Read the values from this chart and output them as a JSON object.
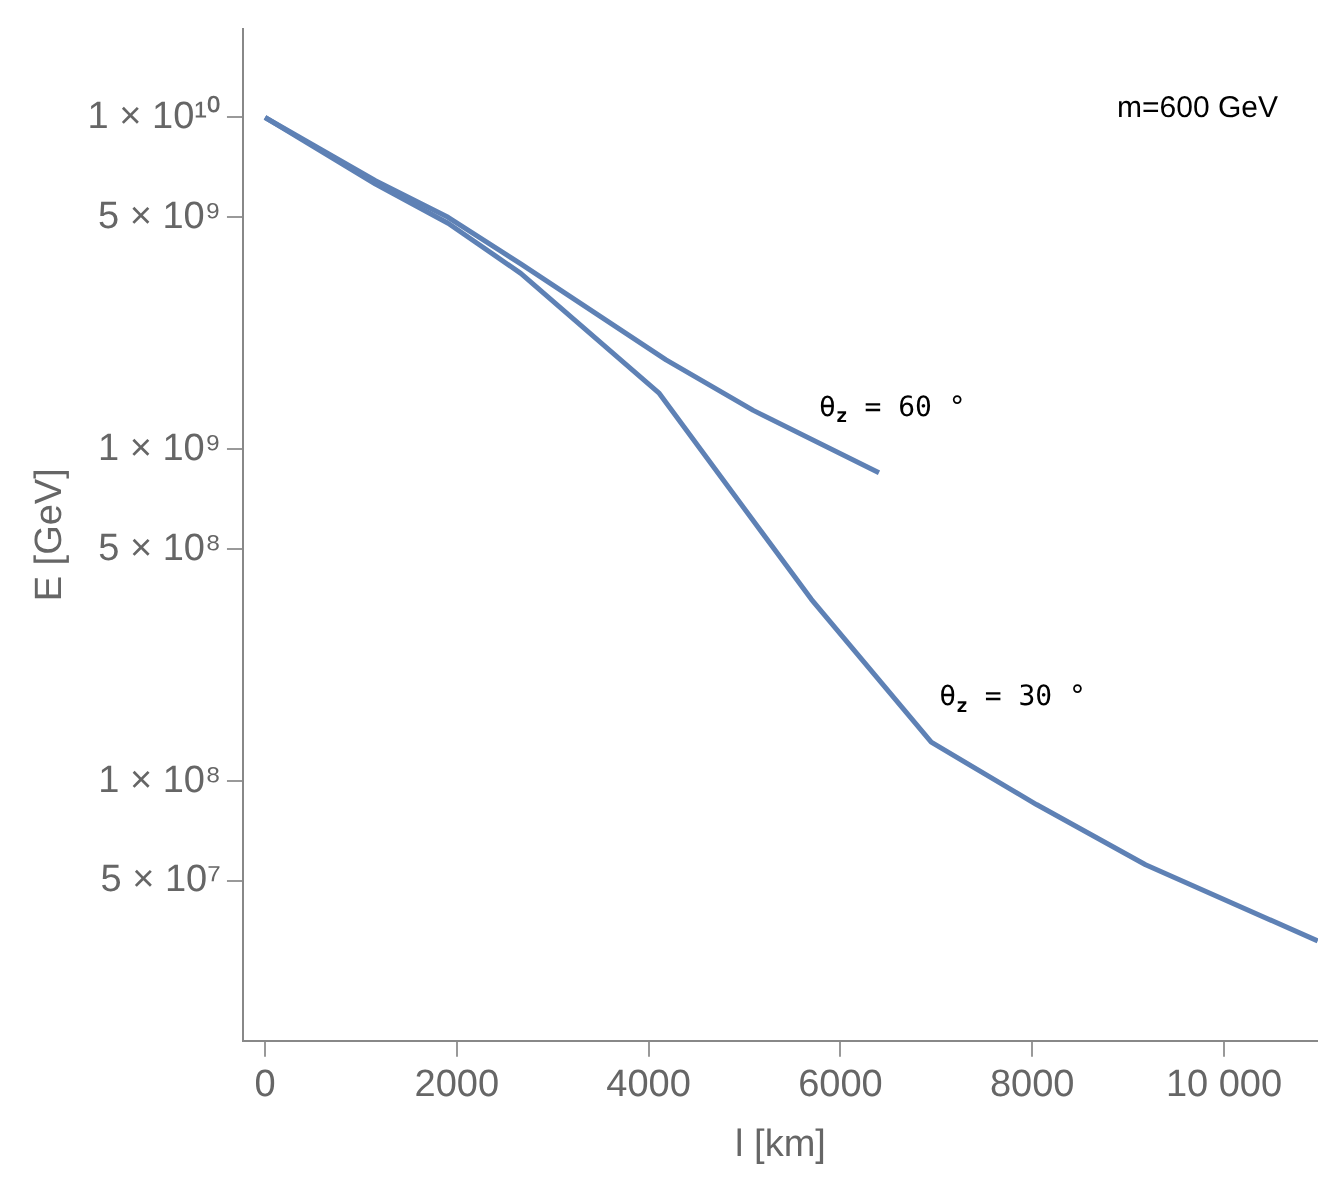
{
  "chart_data": {
    "type": "line",
    "xlabel": "l [km]",
    "ylabel": "E [GeV]",
    "log": "y",
    "grid": false,
    "legend": false,
    "marker": "none",
    "line_style": "solid",
    "xlim": [
      -230,
      10980
    ],
    "xticks": [
      0,
      2000,
      4000,
      6000,
      8000,
      {
        "value": 10000,
        "label": "10 000"
      }
    ],
    "ylim": [
      16500000,
      18500000000
    ],
    "yticks": [
      {
        "value": 10000000000,
        "label": "1 × 10¹⁰"
      },
      {
        "value": 5000000000,
        "label": "5 × 10⁹"
      },
      {
        "value": 1000000000,
        "label": "1 × 10⁹"
      },
      {
        "value": 500000000,
        "label": "5 × 10⁸"
      },
      {
        "value": 100000000,
        "label": "1 × 10⁸"
      },
      {
        "value": 50000000,
        "label": "5 × 10⁷"
      }
    ],
    "series": [
      {
        "name": "θ$_{z}$ = 60 °",
        "color": "#5e81b5",
        "x": [
          0,
          1152,
          1909,
          2667,
          4182,
          5091,
          6402
        ],
        "values": [
          10000000000,
          6450000000,
          5000000000,
          3620000000,
          1860000000,
          1310000000,
          850000000
        ]
      },
      {
        "name": "θ$_{z}$ = 30 °",
        "color": "#5e81b5",
        "x": [
          0,
          1152,
          1909,
          2667,
          4106,
          5697,
          6947,
          8045,
          9182,
          10977
        ],
        "values": [
          10000000000,
          6300000000,
          4800000000,
          3390000000,
          1480000000,
          353000000,
          131000000,
          85000000,
          56000000,
          33000000
        ]
      }
    ],
    "annotations": [
      "m=600 GeV"
    ]
  }
}
